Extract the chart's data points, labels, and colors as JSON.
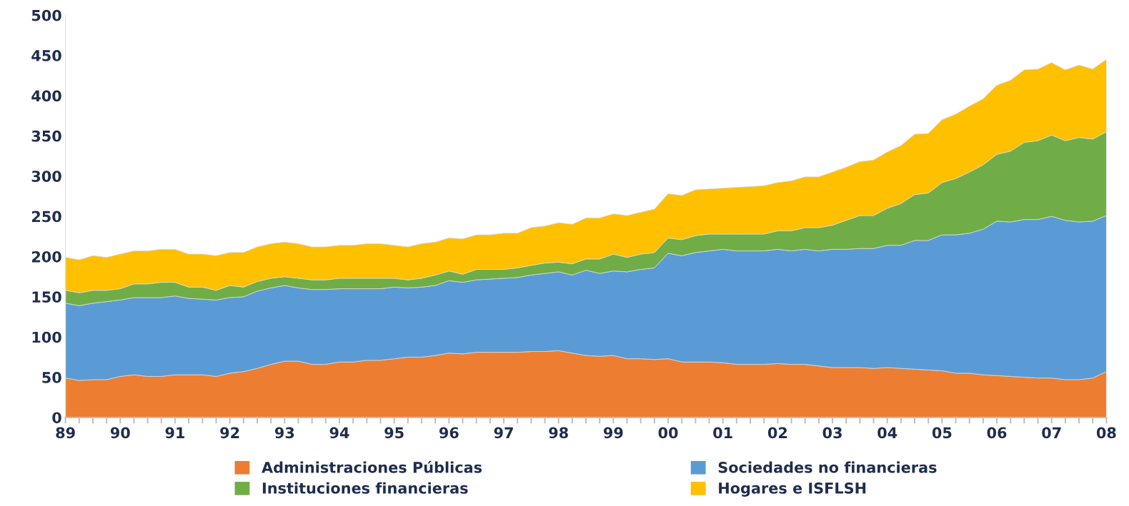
{
  "chart_data": {
    "type": "area",
    "stacked": true,
    "categories": [
      "89",
      null,
      null,
      null,
      "90",
      null,
      null,
      null,
      "91",
      null,
      null,
      null,
      "92",
      null,
      null,
      null,
      "93",
      null,
      null,
      null,
      "94",
      null,
      null,
      null,
      "95",
      null,
      null,
      null,
      "96",
      null,
      null,
      null,
      "97",
      null,
      null,
      null,
      "98",
      null,
      null,
      null,
      "99",
      null,
      null,
      null,
      "00",
      null,
      null,
      null,
      "01",
      null,
      null,
      null,
      "02",
      null,
      null,
      null,
      "03",
      null,
      null,
      null,
      "04",
      null,
      null,
      null,
      "05",
      null,
      null,
      null,
      "06",
      null,
      null,
      null,
      "07",
      null,
      null,
      null,
      "08"
    ],
    "ylim": [
      0,
      500
    ],
    "yticks": [
      0,
      50,
      100,
      150,
      200,
      250,
      300,
      350,
      400,
      450,
      500
    ],
    "grid": false,
    "legend": "bottom",
    "series": [
      {
        "name": "Administraciones Públicas",
        "color": "#ed7d31",
        "values": [
          49,
          46,
          47,
          47,
          51,
          53,
          51,
          51,
          53,
          53,
          53,
          51,
          55,
          57,
          61,
          66,
          70,
          70,
          66,
          66,
          69,
          69,
          71,
          71,
          73,
          75,
          75,
          77,
          80,
          79,
          81,
          81,
          81,
          81,
          82,
          82,
          83,
          80,
          77,
          76,
          77,
          73,
          73,
          72,
          73,
          69,
          69,
          69,
          68,
          66,
          66,
          66,
          67,
          66,
          66,
          64,
          62,
          62,
          62,
          61,
          62,
          61,
          60,
          59,
          58,
          55,
          55,
          53,
          52,
          51,
          50,
          49,
          49,
          47,
          47,
          49,
          57
        ]
      },
      {
        "name": "Sociedades no financieras",
        "color": "#5b9bd5",
        "values": [
          93,
          93,
          95,
          97,
          95,
          96,
          98,
          98,
          98,
          95,
          94,
          95,
          94,
          93,
          96,
          95,
          94,
          91,
          93,
          93,
          91,
          91,
          89,
          89,
          89,
          86,
          87,
          87,
          90,
          89,
          90,
          91,
          92,
          93,
          95,
          97,
          98,
          97,
          106,
          103,
          105,
          108,
          111,
          114,
          131,
          132,
          136,
          138,
          141,
          141,
          141,
          141,
          142,
          141,
          143,
          143,
          147,
          147,
          148,
          149,
          152,
          153,
          160,
          161,
          169,
          172,
          174,
          181,
          192,
          192,
          196,
          197,
          201,
          198,
          196,
          195,
          194
        ]
      },
      {
        "name": "Instituciones financieras",
        "color": "#70ad47",
        "values": [
          16,
          16,
          16,
          14,
          14,
          17,
          17,
          19,
          17,
          14,
          15,
          12,
          15,
          12,
          12,
          12,
          11,
          12,
          12,
          12,
          13,
          13,
          13,
          13,
          11,
          10,
          11,
          13,
          12,
          10,
          13,
          12,
          11,
          12,
          12,
          13,
          12,
          14,
          14,
          18,
          21,
          18,
          19,
          19,
          19,
          20,
          21,
          21,
          19,
          21,
          21,
          21,
          23,
          25,
          27,
          29,
          30,
          36,
          41,
          41,
          46,
          52,
          57,
          59,
          65,
          70,
          76,
          80,
          83,
          88,
          96,
          98,
          101,
          99,
          105,
          102,
          104
        ]
      },
      {
        "name": "Hogares e ISFLSH",
        "color": "#ffc000",
        "values": [
          41,
          41,
          43,
          41,
          43,
          41,
          41,
          41,
          41,
          41,
          41,
          43,
          41,
          43,
          43,
          43,
          43,
          43,
          41,
          41,
          41,
          41,
          43,
          43,
          41,
          41,
          43,
          41,
          41,
          44,
          43,
          43,
          45,
          43,
          47,
          46,
          49,
          49,
          51,
          51,
          50,
          52,
          52,
          54,
          55,
          55,
          57,
          56,
          57,
          58,
          59,
          60,
          60,
          62,
          63,
          63,
          66,
          66,
          67,
          69,
          70,
          72,
          75,
          74,
          78,
          80,
          82,
          82,
          86,
          88,
          90,
          89,
          90,
          88,
          90,
          87,
          90
        ]
      }
    ]
  }
}
